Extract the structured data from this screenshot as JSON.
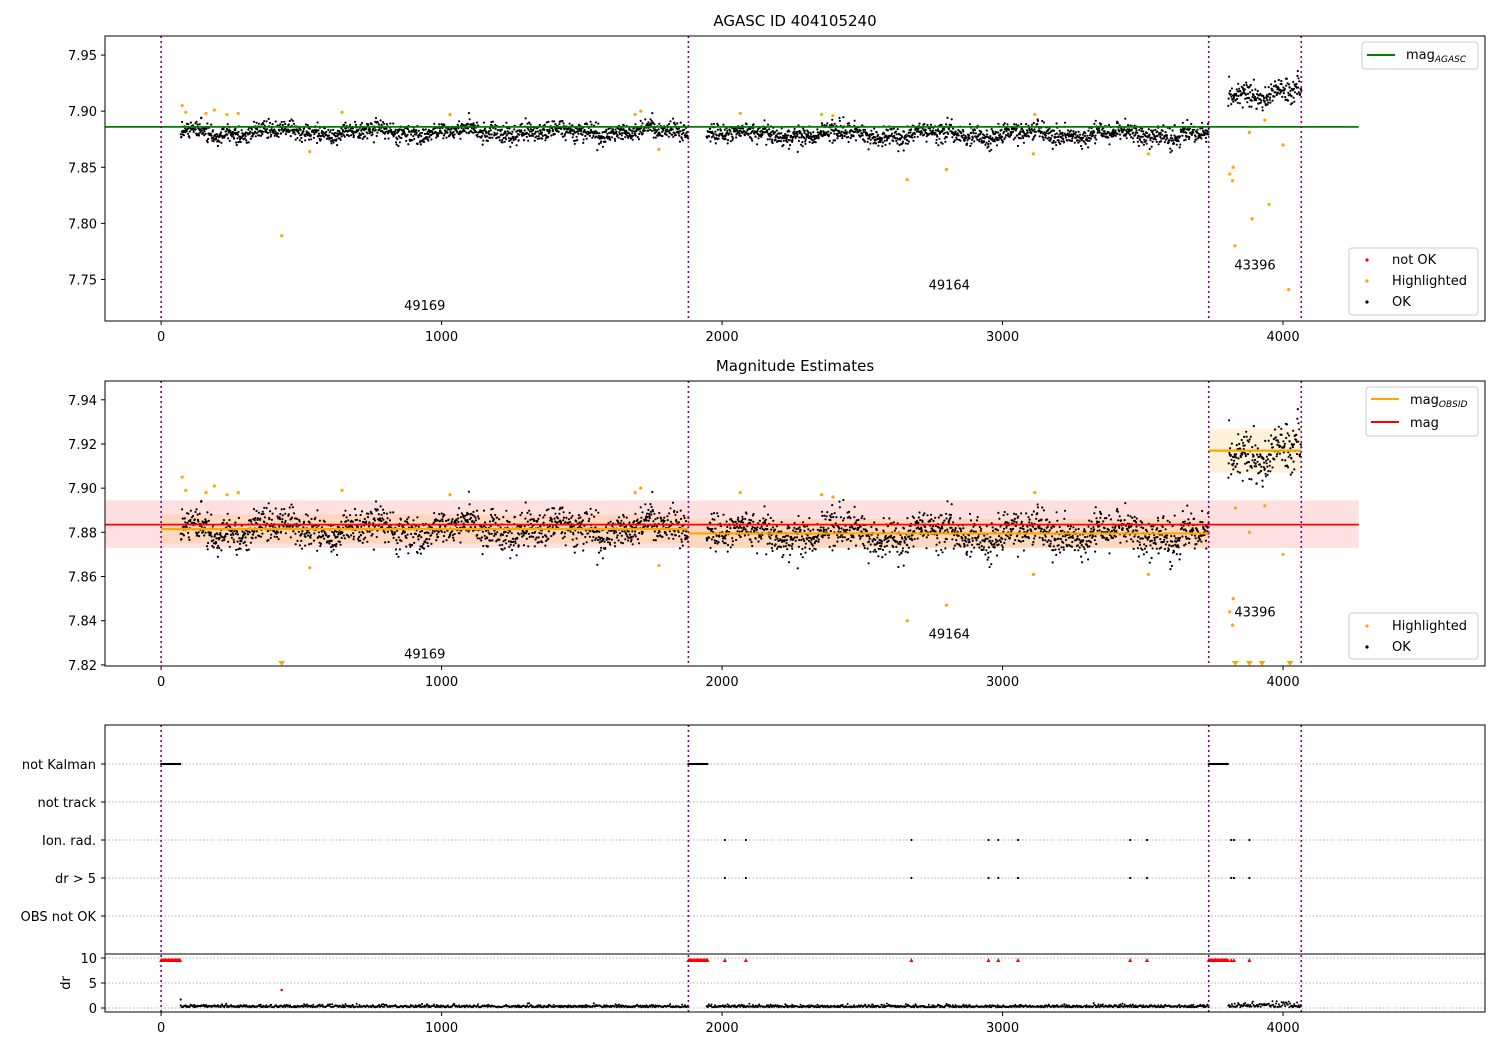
{
  "colors": {
    "ok": "#000000",
    "highlighted": "#ffa500",
    "not_ok": "#ff0000",
    "agasc": "#008000",
    "mag": "#ff0000",
    "mag_obsid": "#ffa500",
    "obs_boundary": "#800080"
  },
  "tick_labels": [
    "0",
    "1000",
    "2000",
    "3000",
    "4000"
  ],
  "chart_data": [
    {
      "type": "scatter",
      "title": "AGASC ID 404105240",
      "xlim": [
        -200,
        4720
      ],
      "ylim": [
        7.713,
        7.967
      ],
      "yticks": [
        7.75,
        7.8,
        7.85,
        7.9,
        7.95
      ],
      "ytick_labels": [
        "7.75",
        "7.80",
        "7.85",
        "7.90",
        "7.95"
      ],
      "legend_top": {
        "label": "mag",
        "sub": "AGASC"
      },
      "legend_bottom": [
        "not OK",
        "Highlighted",
        "OK"
      ],
      "agasc_mag": 7.886,
      "agasc_line_x": [
        -200,
        4270
      ],
      "obsids": [
        {
          "label": "49169",
          "start": 0,
          "end": 1880,
          "label_x": 940,
          "label_y": 7.723
        },
        {
          "label": "49164",
          "start": 1880,
          "end": 3735,
          "label_x": 2810,
          "label_y": 7.741
        },
        {
          "label": "43396",
          "start": 3735,
          "end": 4065,
          "label_x": 3900,
          "label_y": 7.759
        }
      ],
      "highlighted_points": [
        [
          75,
          7.905
        ],
        [
          88,
          7.899
        ],
        [
          160,
          7.898
        ],
        [
          190,
          7.901
        ],
        [
          235,
          7.897
        ],
        [
          275,
          7.898
        ],
        [
          430,
          7.789
        ],
        [
          530,
          7.864
        ],
        [
          645,
          7.899
        ],
        [
          1030,
          7.897
        ],
        [
          1690,
          7.897
        ],
        [
          1710,
          7.9
        ],
        [
          1775,
          7.866
        ],
        [
          2065,
          7.898
        ],
        [
          2355,
          7.897
        ],
        [
          2395,
          7.896
        ],
        [
          2660,
          7.839
        ],
        [
          2800,
          7.848
        ],
        [
          3110,
          7.862
        ],
        [
          3115,
          7.897
        ],
        [
          3520,
          7.862
        ],
        [
          3810,
          7.844
        ],
        [
          3820,
          7.838
        ],
        [
          3822,
          7.85
        ],
        [
          3828,
          7.78
        ],
        [
          3880,
          7.881
        ],
        [
          3890,
          7.804
        ],
        [
          3935,
          7.892
        ],
        [
          3950,
          7.817
        ],
        [
          4000,
          7.87
        ],
        [
          4020,
          7.741
        ]
      ]
    },
    {
      "type": "scatter",
      "title": "Magnitude Estimates",
      "xlim": [
        -200,
        4720
      ],
      "ylim": [
        7.8195,
        7.9485
      ],
      "yticks": [
        7.82,
        7.84,
        7.86,
        7.88,
        7.9,
        7.92,
        7.94
      ],
      "ytick_labels": [
        "7.82",
        "7.84",
        "7.86",
        "7.88",
        "7.90",
        "7.92",
        "7.94"
      ],
      "legend_top": [
        {
          "label": "mag",
          "sub": "OBSID"
        },
        {
          "label": "mag"
        }
      ],
      "legend_bottom": [
        "Highlighted",
        "OK"
      ],
      "mag": 7.8835,
      "mag_band": [
        7.873,
        7.8945
      ],
      "mag_line_x": [
        -200,
        4270
      ],
      "obsid_mags": [
        {
          "start": 0,
          "end": 1880,
          "mag": 7.8815,
          "band": [
            7.875,
            7.888
          ]
        },
        {
          "start": 1880,
          "end": 3735,
          "mag": 7.8795,
          "band": [
            7.873,
            7.886
          ]
        },
        {
          "start": 3735,
          "end": 4065,
          "mag": 7.917,
          "band": [
            7.907,
            7.927
          ]
        }
      ],
      "obsids": [
        {
          "label": "49169",
          "label_x": 940,
          "label_y": 7.823
        },
        {
          "label": "49164",
          "label_x": 2810,
          "label_y": 7.832
        },
        {
          "label": "43396",
          "label_x": 3900,
          "label_y": 7.842
        }
      ],
      "highlighted_points": [
        [
          75,
          7.905
        ],
        [
          88,
          7.899
        ],
        [
          160,
          7.898
        ],
        [
          190,
          7.901
        ],
        [
          235,
          7.897
        ],
        [
          275,
          7.898
        ],
        [
          530,
          7.864
        ],
        [
          645,
          7.899
        ],
        [
          1030,
          7.897
        ],
        [
          1690,
          7.898
        ],
        [
          1710,
          7.9
        ],
        [
          1775,
          7.865
        ],
        [
          2065,
          7.898
        ],
        [
          2355,
          7.897
        ],
        [
          2395,
          7.896
        ],
        [
          2660,
          7.84
        ],
        [
          2800,
          7.847
        ],
        [
          3110,
          7.861
        ],
        [
          3115,
          7.898
        ],
        [
          3520,
          7.861
        ],
        [
          3810,
          7.844
        ],
        [
          3820,
          7.838
        ],
        [
          3822,
          7.85
        ],
        [
          3830,
          7.891
        ],
        [
          3880,
          7.88
        ],
        [
          3935,
          7.892
        ],
        [
          4000,
          7.87
        ]
      ],
      "lower_limit_points": [
        430,
        3830,
        3880,
        3925,
        4025
      ]
    },
    {
      "type": "scatter",
      "title": "",
      "xlim": [
        -200,
        4720
      ],
      "flag_rows": [
        "not Kalman",
        "not track",
        "Ion. rad.",
        "dr > 5",
        "OBS not OK"
      ],
      "flags": {
        "not Kalman": [
          [
            0,
            70
          ],
          [
            1880,
            1950
          ],
          [
            3735,
            3805
          ]
        ],
        "Ion. rad.": [
          2010,
          2085,
          2675,
          2950,
          2985,
          3055,
          3455,
          3515,
          3815,
          3825,
          3880
        ],
        "dr > 5": [
          2010,
          2085,
          2675,
          2950,
          2985,
          3055,
          3455,
          3515,
          3815,
          3825,
          3880
        ]
      },
      "dr_ylabel": "dr",
      "dr_ylim": [
        -0.8,
        10.8
      ],
      "dr_yticks": [
        0,
        5,
        10
      ],
      "dr_ytick_labels": [
        "0",
        "5",
        "10"
      ],
      "dr_clipped": [
        [
          0,
          70
        ],
        [
          1880,
          1950
        ],
        [
          3735,
          3805
        ]
      ],
      "dr_clipped_points": [
        2010,
        2085,
        2675,
        2950,
        2985,
        3055,
        3455,
        3515,
        3815,
        3825,
        3880
      ],
      "dr_outliers": [
        [
          430,
          3.6
        ]
      ]
    }
  ]
}
